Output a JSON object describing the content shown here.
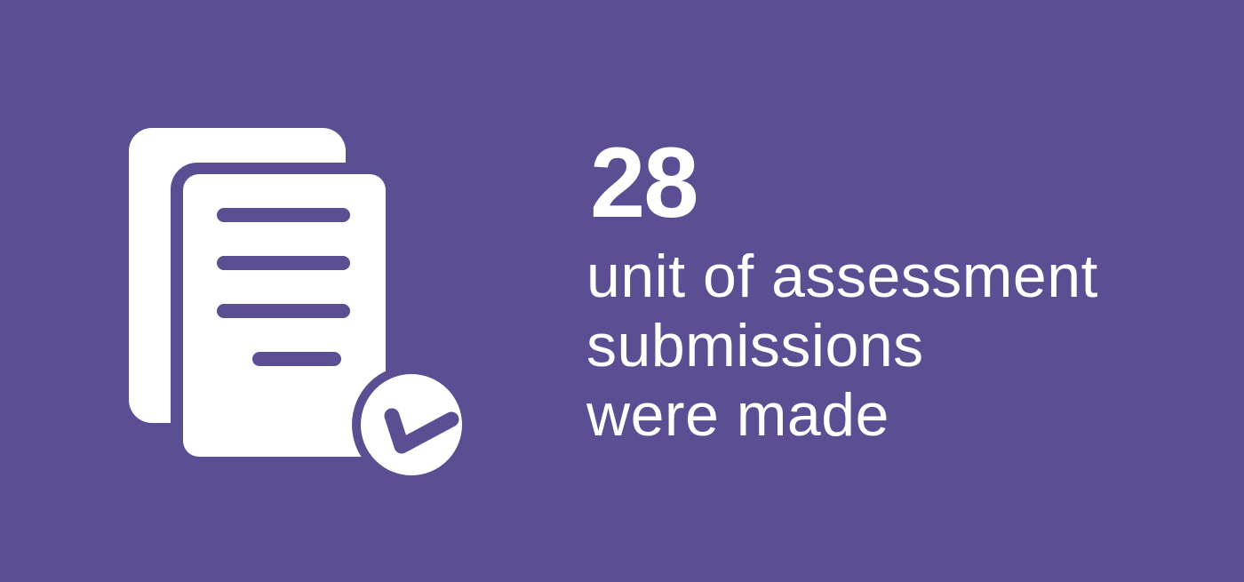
{
  "colors": {
    "background": "#5b4e92",
    "foreground": "#ffffff"
  },
  "icon": {
    "name": "documents-checked-icon"
  },
  "stat": {
    "number": "28",
    "lines": [
      "unit of assessment",
      "submissions",
      "were made"
    ]
  }
}
